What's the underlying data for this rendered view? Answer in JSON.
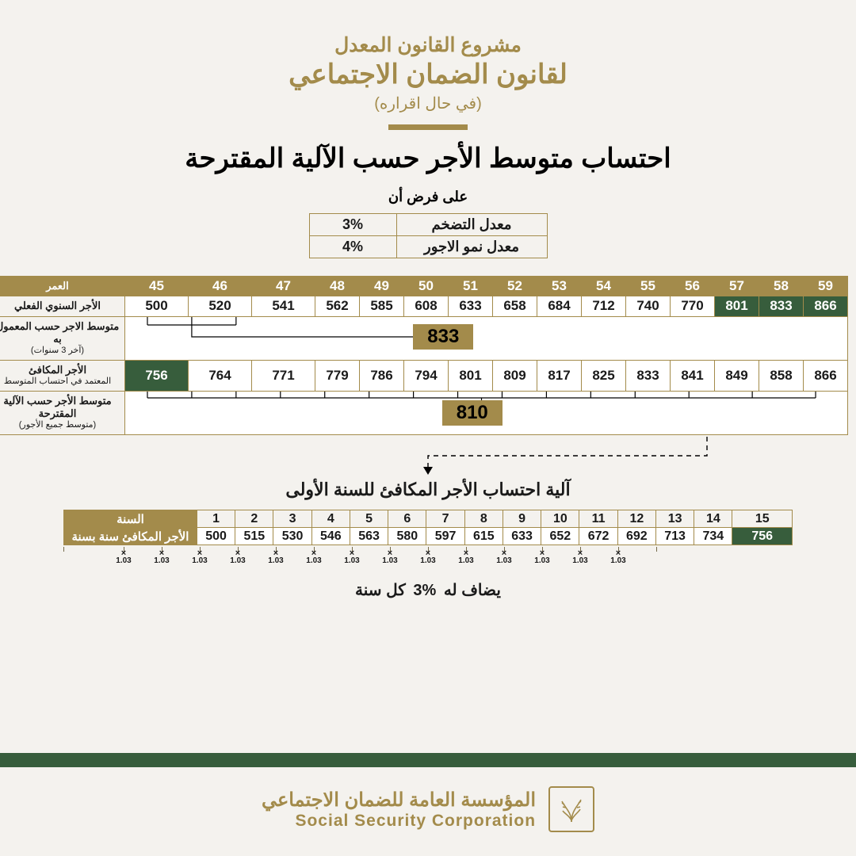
{
  "header": {
    "line1": "مشروع القانون المعدل",
    "line2": "لقانون الضمان الاجتماعي",
    "line3": "(في حال اقراره)",
    "title": "احتساب متوسط الأجر حسب الآلية المقترحة",
    "sub": "على فرض أن"
  },
  "assumptions": [
    {
      "label": "معدل التضخم",
      "value": "3%"
    },
    {
      "label": "معدل نمو الاجور",
      "value": "4%"
    }
  ],
  "wage_table": {
    "row_labels": {
      "age": "العمر",
      "actual": "الأجر السنوي  الفعلي",
      "current_avg": "متوسط الاجر حسب المعمول به",
      "current_avg_sub": "(آخر 3 سنوات)",
      "equiv": "الأجر المكافئ",
      "equiv_sub": "المعتمد في احتساب المتوسط",
      "proposed": "متوسط الأجر حسب الآلية المقترحة",
      "proposed_sub": "(متوسط جميع الأجور)"
    },
    "ages": [
      45,
      46,
      47,
      48,
      49,
      50,
      51,
      52,
      53,
      54,
      55,
      56,
      57,
      58,
      59
    ],
    "actual": [
      500,
      520,
      541,
      562,
      585,
      608,
      633,
      658,
      684,
      712,
      740,
      770,
      801,
      833,
      866
    ],
    "actual_highlight_idx": [
      12,
      13,
      14
    ],
    "current_avg_value": "833",
    "equiv": [
      756,
      764,
      771,
      779,
      786,
      794,
      801,
      809,
      817,
      825,
      833,
      841,
      849,
      858,
      866
    ],
    "equiv_highlight_idx": [
      0
    ],
    "proposed_value": "810",
    "wide_idx": [
      0,
      1,
      2
    ]
  },
  "arrow_caption": "آلية احتساب الأجر المكافئ للسنة الأولى",
  "year_table": {
    "row_labels": {
      "year": "السنة",
      "equiv": "الأجر المكافئ سنة بسنة"
    },
    "years": [
      1,
      2,
      3,
      4,
      5,
      6,
      7,
      8,
      9,
      10,
      11,
      12,
      13,
      14,
      15
    ],
    "values": [
      500,
      515,
      530,
      546,
      563,
      580,
      597,
      615,
      633,
      652,
      672,
      692,
      713,
      734,
      756
    ],
    "highlight_idx": [
      14
    ],
    "wide_idx": [
      14
    ],
    "multiplier": "1.03"
  },
  "add_line": {
    "pre": "يضاف له",
    "pct": "3%",
    "post": "كل سنة"
  },
  "footer": {
    "ar": "المؤسسة العامة للضمان الاجتماعي",
    "en": "Social Security Corporation"
  },
  "colors": {
    "gold": "#a38b4b",
    "green": "#375d3c",
    "bg": "#f4f2ee"
  }
}
